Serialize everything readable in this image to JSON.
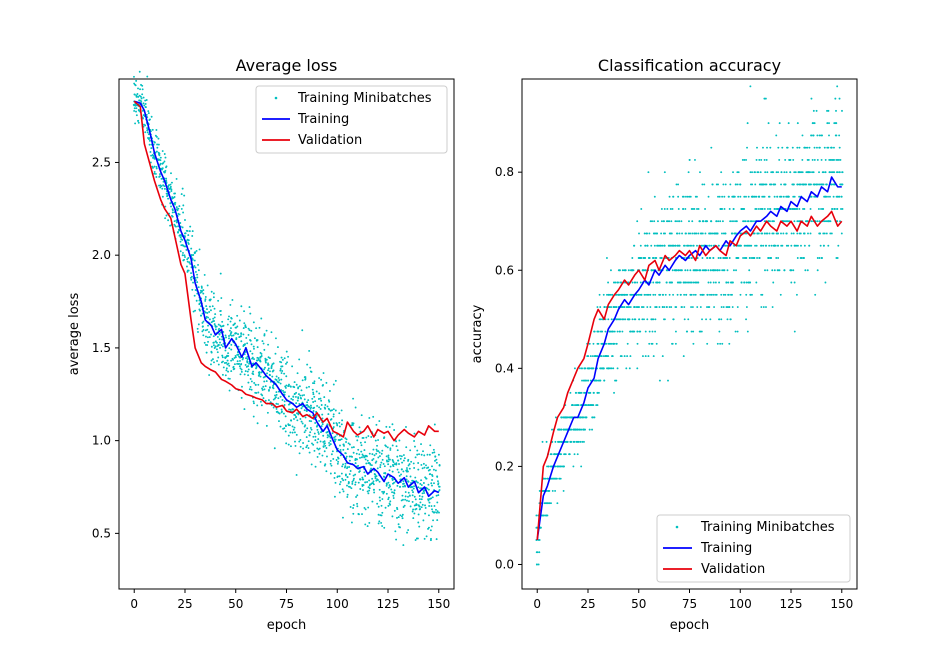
{
  "chart_data": [
    {
      "type": "line",
      "title": "Average loss",
      "xlabel": "epoch",
      "ylabel": "average loss",
      "xlim": [
        -7.5,
        157.5
      ],
      "ylim": [
        0.2,
        2.95
      ],
      "xticks": [
        0,
        25,
        50,
        75,
        100,
        125,
        150
      ],
      "xtick_labels": [
        "0",
        "25",
        "50",
        "75",
        "100",
        "125",
        "150"
      ],
      "yticks": [
        0.5,
        1.0,
        1.5,
        2.0,
        2.5
      ],
      "ytick_labels": [
        "0.5",
        "1.0",
        "1.5",
        "2.0",
        "2.5"
      ],
      "legend_position": "top-right",
      "grid": false,
      "series": [
        {
          "name": "Training Minibatches",
          "style": "scatter",
          "color": "#00bfbf",
          "x": [
            0,
            150
          ],
          "y": [
            2.82,
            0.7
          ]
        },
        {
          "name": "Training",
          "style": "line",
          "color": "#0000ff",
          "x": [
            0,
            3,
            5,
            8,
            10,
            13,
            15,
            18,
            20,
            23,
            25,
            28,
            30,
            33,
            35,
            38,
            40,
            43,
            45,
            48,
            50,
            53,
            55,
            58,
            60,
            63,
            65,
            68,
            70,
            73,
            75,
            78,
            80,
            83,
            85,
            88,
            90,
            93,
            95,
            98,
            100,
            103,
            105,
            108,
            110,
            113,
            115,
            118,
            120,
            123,
            125,
            128,
            130,
            133,
            135,
            138,
            140,
            143,
            145,
            148,
            150
          ],
          "y": [
            2.83,
            2.82,
            2.78,
            2.65,
            2.55,
            2.45,
            2.4,
            2.3,
            2.25,
            2.13,
            2.08,
            1.98,
            1.85,
            1.75,
            1.65,
            1.62,
            1.57,
            1.6,
            1.5,
            1.55,
            1.52,
            1.45,
            1.5,
            1.4,
            1.42,
            1.38,
            1.35,
            1.32,
            1.3,
            1.25,
            1.22,
            1.2,
            1.18,
            1.2,
            1.17,
            1.15,
            1.1,
            1.05,
            1.08,
            1.0,
            0.95,
            0.92,
            0.88,
            0.87,
            0.85,
            0.86,
            0.82,
            0.85,
            0.83,
            0.78,
            0.82,
            0.8,
            0.77,
            0.8,
            0.75,
            0.78,
            0.72,
            0.75,
            0.7,
            0.73,
            0.72
          ]
        },
        {
          "name": "Validation",
          "style": "line",
          "color": "#e8000b",
          "x": [
            0,
            3,
            5,
            8,
            10,
            13,
            15,
            18,
            20,
            23,
            25,
            28,
            30,
            33,
            35,
            38,
            40,
            43,
            45,
            48,
            50,
            53,
            55,
            58,
            60,
            63,
            65,
            68,
            70,
            73,
            75,
            78,
            80,
            83,
            85,
            88,
            90,
            93,
            95,
            98,
            100,
            103,
            105,
            108,
            110,
            113,
            115,
            118,
            120,
            123,
            125,
            128,
            130,
            133,
            135,
            138,
            140,
            143,
            145,
            148,
            150
          ],
          "y": [
            2.83,
            2.8,
            2.6,
            2.48,
            2.4,
            2.3,
            2.25,
            2.2,
            2.1,
            1.95,
            1.9,
            1.65,
            1.5,
            1.42,
            1.4,
            1.38,
            1.37,
            1.33,
            1.32,
            1.3,
            1.28,
            1.27,
            1.25,
            1.24,
            1.23,
            1.22,
            1.2,
            1.2,
            1.18,
            1.19,
            1.16,
            1.15,
            1.17,
            1.13,
            1.14,
            1.12,
            1.15,
            1.1,
            1.12,
            1.05,
            1.04,
            1.02,
            1.1,
            1.05,
            1.03,
            1.05,
            1.08,
            1.02,
            1.06,
            1.04,
            1.05,
            1.0,
            1.03,
            1.06,
            1.04,
            1.02,
            1.05,
            1.03,
            1.08,
            1.05,
            1.05
          ]
        }
      ]
    },
    {
      "type": "line",
      "title": "Classification accuracy",
      "xlabel": "epoch",
      "ylabel": "accuracy",
      "xlim": [
        -7.5,
        157.5
      ],
      "ylim": [
        -0.05,
        0.99
      ],
      "xticks": [
        0,
        25,
        50,
        75,
        100,
        125,
        150
      ],
      "xtick_labels": [
        "0",
        "25",
        "50",
        "75",
        "100",
        "125",
        "150"
      ],
      "yticks": [
        0.0,
        0.2,
        0.4,
        0.6,
        0.8
      ],
      "ytick_labels": [
        "0.0",
        "0.2",
        "0.4",
        "0.6",
        "0.8"
      ],
      "legend_position": "bottom-right",
      "grid": false,
      "series": [
        {
          "name": "Training Minibatches",
          "style": "scatter",
          "color": "#00bfbf",
          "x": [
            0,
            150
          ],
          "y": [
            0.05,
            0.77
          ]
        },
        {
          "name": "Training",
          "style": "line",
          "color": "#0000ff",
          "x": [
            0,
            3,
            5,
            8,
            10,
            13,
            15,
            18,
            20,
            23,
            25,
            28,
            30,
            33,
            35,
            38,
            40,
            43,
            45,
            48,
            50,
            53,
            55,
            58,
            60,
            63,
            65,
            68,
            70,
            73,
            75,
            78,
            80,
            83,
            85,
            88,
            90,
            93,
            95,
            98,
            100,
            103,
            105,
            108,
            110,
            113,
            115,
            118,
            120,
            123,
            125,
            128,
            130,
            133,
            135,
            138,
            140,
            143,
            145,
            148,
            150
          ],
          "y": [
            0.05,
            0.14,
            0.16,
            0.2,
            0.22,
            0.25,
            0.27,
            0.3,
            0.3,
            0.33,
            0.36,
            0.38,
            0.42,
            0.45,
            0.48,
            0.5,
            0.52,
            0.54,
            0.53,
            0.55,
            0.56,
            0.58,
            0.57,
            0.6,
            0.59,
            0.61,
            0.6,
            0.62,
            0.63,
            0.62,
            0.63,
            0.64,
            0.63,
            0.65,
            0.64,
            0.65,
            0.64,
            0.66,
            0.65,
            0.67,
            0.68,
            0.69,
            0.68,
            0.7,
            0.7,
            0.71,
            0.72,
            0.71,
            0.73,
            0.72,
            0.74,
            0.73,
            0.75,
            0.74,
            0.76,
            0.75,
            0.77,
            0.76,
            0.79,
            0.77,
            0.77
          ]
        },
        {
          "name": "Validation",
          "style": "line",
          "color": "#e8000b",
          "x": [
            0,
            3,
            5,
            8,
            10,
            13,
            15,
            18,
            20,
            23,
            25,
            28,
            30,
            33,
            35,
            38,
            40,
            43,
            45,
            48,
            50,
            53,
            55,
            58,
            60,
            63,
            65,
            68,
            70,
            73,
            75,
            78,
            80,
            83,
            85,
            88,
            90,
            93,
            95,
            98,
            100,
            103,
            105,
            108,
            110,
            113,
            115,
            118,
            120,
            123,
            125,
            128,
            130,
            133,
            135,
            138,
            140,
            143,
            145,
            148,
            150
          ],
          "y": [
            0.05,
            0.2,
            0.22,
            0.27,
            0.3,
            0.32,
            0.35,
            0.38,
            0.4,
            0.42,
            0.45,
            0.5,
            0.52,
            0.5,
            0.53,
            0.55,
            0.56,
            0.58,
            0.57,
            0.59,
            0.6,
            0.58,
            0.61,
            0.62,
            0.6,
            0.63,
            0.62,
            0.63,
            0.64,
            0.63,
            0.64,
            0.62,
            0.65,
            0.63,
            0.64,
            0.65,
            0.64,
            0.63,
            0.66,
            0.65,
            0.67,
            0.68,
            0.67,
            0.69,
            0.68,
            0.7,
            0.69,
            0.68,
            0.7,
            0.69,
            0.7,
            0.68,
            0.7,
            0.69,
            0.71,
            0.69,
            0.7,
            0.71,
            0.72,
            0.69,
            0.7
          ]
        }
      ]
    }
  ]
}
